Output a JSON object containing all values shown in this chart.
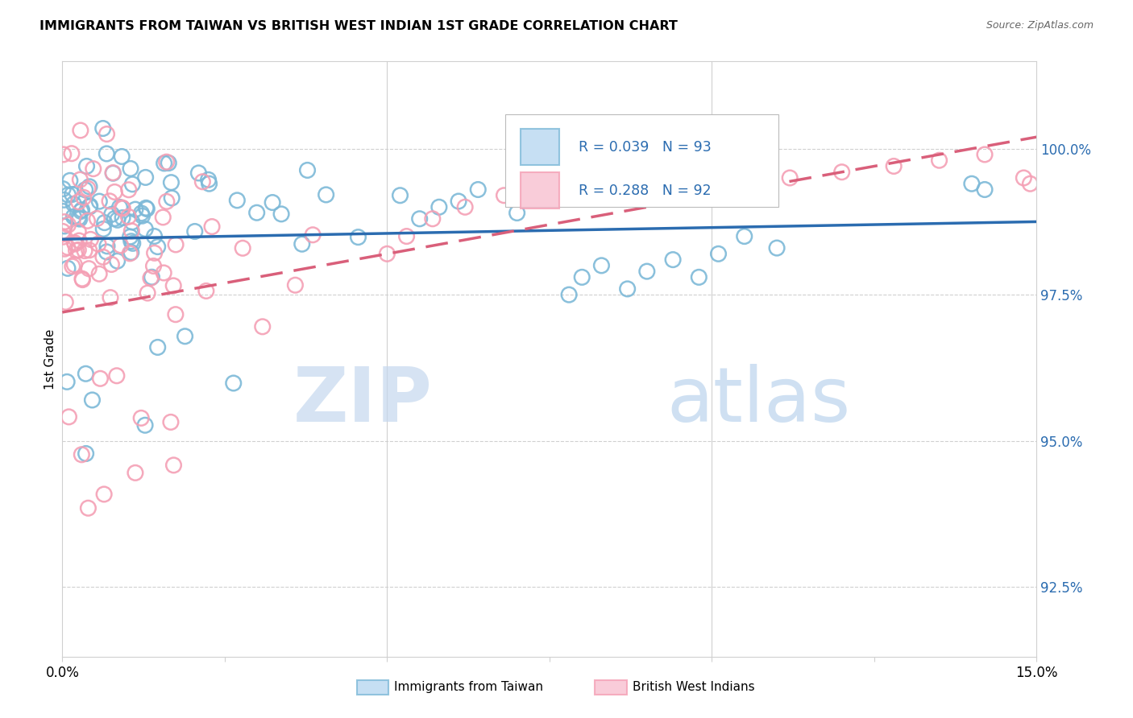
{
  "title": "IMMIGRANTS FROM TAIWAN VS BRITISH WEST INDIAN 1ST GRADE CORRELATION CHART",
  "source": "Source: ZipAtlas.com",
  "ylabel": "1st Grade",
  "yticks": [
    92.5,
    95.0,
    97.5,
    100.0
  ],
  "ytick_labels": [
    "92.5%",
    "95.0%",
    "97.5%",
    "100.0%"
  ],
  "xmin": 0.0,
  "xmax": 15.0,
  "ymin": 91.3,
  "ymax": 101.5,
  "taiwan_R": 0.039,
  "taiwan_N": 93,
  "bwi_R": 0.288,
  "bwi_N": 92,
  "taiwan_color": "#7db9d8",
  "bwi_color": "#f4a0b5",
  "taiwan_line_color": "#2b6cb0",
  "bwi_line_color": "#d95f7a",
  "watermark_zip": "ZIP",
  "watermark_atlas": "atlas",
  "legend_taiwan_label": "Immigrants from Taiwan",
  "legend_bwi_label": "British West Indians"
}
